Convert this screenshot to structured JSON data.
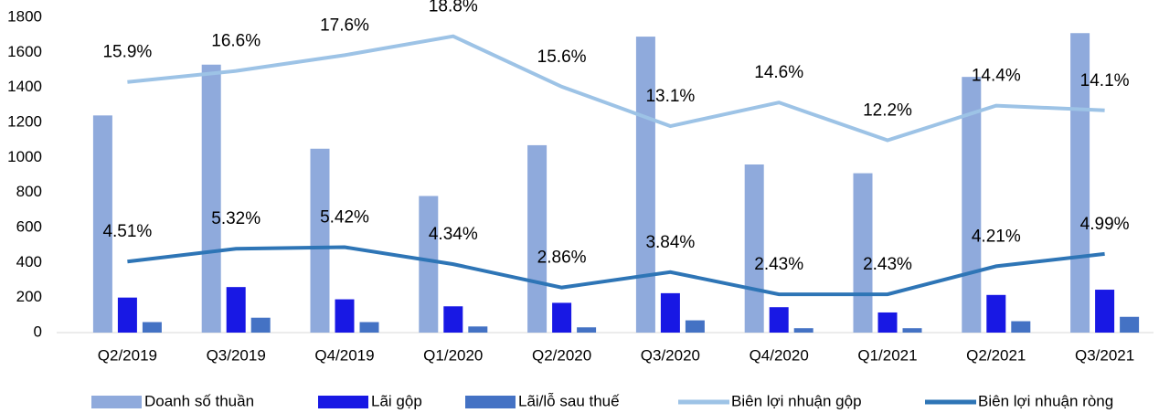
{
  "chart_data": {
    "type": "bar",
    "categories": [
      "Q2/2019",
      "Q3/2019",
      "Q4/2019",
      "Q1/2020",
      "Q2/2020",
      "Q3/2020",
      "Q4/2020",
      "Q1/2021",
      "Q2/2021",
      "Q3/2021"
    ],
    "series": [
      {
        "name": "Doanh số thuần",
        "type": "bar",
        "color": "#8faadc",
        "values": [
          1240,
          1530,
          1050,
          780,
          1070,
          1690,
          960,
          910,
          1460,
          1710
        ]
      },
      {
        "name": "Lãi gộp",
        "type": "bar",
        "color": "#1818e4",
        "values": [
          200,
          260,
          190,
          150,
          170,
          225,
          145,
          115,
          215,
          245
        ]
      },
      {
        "name": "Lãi/lỗ sau thuế",
        "type": "bar",
        "color": "#4472c4",
        "values": [
          60,
          85,
          60,
          35,
          30,
          70,
          25,
          25,
          65,
          90
        ]
      },
      {
        "name": "Biên lợi nhuận gộp",
        "type": "line",
        "axis": "y2",
        "color": "#9dc3e6",
        "values": [
          15.9,
          16.6,
          17.6,
          18.8,
          15.6,
          13.1,
          14.6,
          12.2,
          14.4,
          14.1
        ],
        "value_labels": [
          "15.9%",
          "16.6%",
          "17.6%",
          "18.8%",
          "15.6%",
          "13.1%",
          "14.6%",
          "12.2%",
          "14.4%",
          "14.1%"
        ]
      },
      {
        "name": "Biên lợi nhuận ròng",
        "type": "line",
        "axis": "y2",
        "color": "#2e75b6",
        "values": [
          4.51,
          5.32,
          5.42,
          4.34,
          2.86,
          3.84,
          2.43,
          2.43,
          4.21,
          4.99
        ],
        "value_labels": [
          "4.51%",
          "5.32%",
          "5.42%",
          "4.34%",
          "2.86%",
          "3.84%",
          "2.43%",
          "2.43%",
          "4.21%",
          "4.99%"
        ]
      }
    ],
    "ylim": [
      0,
      1800
    ],
    "yticks": [
      0,
      200,
      400,
      600,
      800,
      1000,
      1200,
      1400,
      1600,
      1800
    ],
    "y2lim": [
      0,
      20
    ],
    "grid": false,
    "legend": "bottom"
  }
}
